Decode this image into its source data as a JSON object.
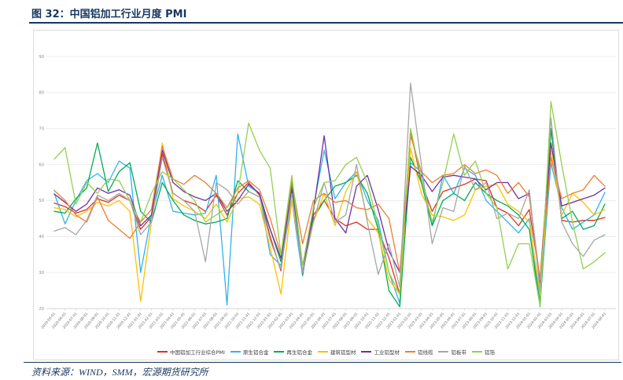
{
  "header": {
    "title": "图 32：中国铝加工行业月度 PMI"
  },
  "footer": {
    "source": "资料来源：WIND，SMM，宏源期货研究所"
  },
  "chart_data": {
    "type": "line",
    "title": "中国铝加工行业月度 PMI",
    "xlabel": "",
    "ylabel": "",
    "ylim": [
      20,
      90
    ],
    "ytick_step": 10,
    "grid": true,
    "legend_position": "bottom",
    "categories": [
      "2020-05-01",
      "2020-06-01",
      "2020-07-01",
      "2020-08-01",
      "2020-09-01",
      "2020-10-01",
      "2020-11-01",
      "2020-12-01",
      "2021-01-01",
      "2021-02-01",
      "2021-03-01",
      "2021-04-01",
      "2021-05-01",
      "2021-06-01",
      "2021-07-01",
      "2021-08-01",
      "2021-09-01",
      "2021-10-01",
      "2021-11-01",
      "2021-12-01",
      "2022-01-01",
      "2022-02-01",
      "2022-03-01",
      "2022-04-01",
      "2022-05-01",
      "2022-06-01",
      "2022-07-01",
      "2022-08-01",
      "2022-09-01",
      "2022-10-01",
      "2022-11-01",
      "2022-12-01",
      "2023-01-01",
      "2023-02-01",
      "2023-03-01",
      "2023-04-01",
      "2023-05-01",
      "2023-06-01",
      "2023-07-01",
      "2023-08-01",
      "2023-09-01",
      "2023-10-01",
      "2023-11-01",
      "2023-12-01",
      "2024-01-01",
      "2024-02-01",
      "2024-03-01",
      "2024-04-01",
      "2024-05-01",
      "2024-06-01",
      "2024-07-01",
      "2024-08-01"
    ],
    "series": [
      {
        "name": "中国铝加工行业综合PMI",
        "color": "#E0301E",
        "values": [
          49.3,
          48.3,
          46.5,
          47.5,
          50.5,
          49.5,
          51.5,
          50.0,
          42.0,
          45.5,
          63.0,
          52.0,
          50.0,
          49.0,
          47.0,
          51.5,
          46.0,
          52.0,
          55.0,
          51.5,
          40.0,
          30.5,
          54.0,
          29.5,
          46.0,
          50.0,
          45.0,
          43.0,
          44.0,
          42.0,
          42.0,
          34.0,
          24.0,
          69.5,
          55.0,
          47.0,
          52.5,
          53.5,
          54.5,
          56.0,
          55.5,
          48.0,
          46.5,
          43.0,
          47.5,
          28.0,
          70.0,
          44.5,
          44.0,
          44.5,
          44.5,
          45.3
        ]
      },
      {
        "name": "原生铝合金",
        "color": "#2FB4E9",
        "values": [
          52.0,
          43.5,
          50.0,
          55.5,
          57.5,
          55.0,
          61.0,
          59.0,
          30.0,
          46.0,
          57.0,
          47.0,
          46.5,
          46.0,
          46.5,
          57.0,
          21.0,
          68.5,
          54.0,
          52.0,
          35.0,
          32.0,
          50.0,
          29.0,
          48.0,
          64.0,
          50.5,
          55.0,
          58.0,
          50.0,
          44.5,
          30.0,
          21.5,
          60.5,
          58.0,
          43.0,
          57.0,
          52.0,
          59.0,
          57.0,
          50.0,
          47.0,
          44.0,
          41.0,
          45.0,
          22.0,
          60.5,
          48.0,
          42.0,
          44.0,
          46.0,
          52.3
        ]
      },
      {
        "name": "再生铝合金",
        "color": "#00A950",
        "values": [
          47.0,
          46.5,
          50.5,
          53.5,
          66.0,
          52.5,
          58.0,
          60.5,
          47.0,
          44.0,
          55.0,
          50.0,
          46.0,
          44.5,
          43.5,
          44.0,
          45.0,
          55.5,
          52.5,
          51.0,
          42.0,
          33.0,
          55.0,
          29.5,
          45.0,
          50.0,
          54.0,
          55.0,
          57.0,
          52.0,
          42.0,
          25.0,
          20.5,
          62.0,
          55.0,
          43.0,
          50.0,
          52.0,
          50.0,
          55.0,
          52.0,
          50.0,
          48.5,
          46.0,
          42.0,
          20.5,
          70.0,
          45.0,
          47.0,
          42.0,
          43.0,
          49.0
        ]
      },
      {
        "name": "建筑铝型材",
        "color": "#FFC000",
        "values": [
          48.0,
          47.5,
          45.5,
          47.0,
          49.5,
          48.5,
          50.0,
          47.0,
          22.0,
          44.0,
          66.0,
          50.5,
          48.5,
          47.0,
          45.0,
          49.0,
          44.0,
          50.5,
          51.0,
          49.0,
          37.0,
          24.0,
          50.0,
          32.0,
          44.0,
          52.0,
          43.0,
          52.5,
          58.0,
          45.0,
          41.0,
          28.0,
          24.0,
          64.5,
          52.0,
          46.0,
          45.5,
          44.5,
          46.0,
          53.0,
          54.0,
          54.5,
          49.0,
          47.0,
          44.0,
          24.0,
          64.0,
          46.0,
          52.0,
          49.5,
          46.0,
          47.5
        ]
      },
      {
        "name": "工业铝型材",
        "color": "#7030A0",
        "values": [
          51.8,
          49.5,
          47.0,
          49.0,
          53.5,
          52.0,
          53.0,
          51.5,
          43.0,
          46.0,
          64.0,
          55.0,
          52.5,
          51.0,
          50.0,
          52.0,
          47.0,
          50.0,
          54.5,
          52.0,
          42.0,
          34.0,
          53.0,
          30.0,
          47.0,
          68.0,
          45.0,
          41.0,
          54.0,
          57.0,
          47.5,
          36.0,
          30.0,
          59.5,
          57.0,
          52.5,
          56.5,
          57.0,
          56.5,
          56.0,
          53.0,
          55.0,
          55.0,
          50.5,
          52.0,
          27.0,
          66.0,
          48.5,
          49.5,
          50.5,
          51.5,
          53.5
        ]
      },
      {
        "name": "铝线缆",
        "color": "#ED7D31",
        "values": [
          52.8,
          50.0,
          46.0,
          44.0,
          51.0,
          44.5,
          42.0,
          39.5,
          44.0,
          47.5,
          65.0,
          56.0,
          54.5,
          57.0,
          55.0,
          52.0,
          48.0,
          53.5,
          55.5,
          53.0,
          45.0,
          35.0,
          55.5,
          38.0,
          50.0,
          52.0,
          49.5,
          50.0,
          48.0,
          47.5,
          49.0,
          45.0,
          30.0,
          68.0,
          58.0,
          55.0,
          57.0,
          57.5,
          60.0,
          57.5,
          58.5,
          57.0,
          52.0,
          55.0,
          51.0,
          28.0,
          62.0,
          50.5,
          52.0,
          53.0,
          57.0,
          54.0
        ]
      },
      {
        "name": "铝板带",
        "color": "#A6A6A6",
        "values": [
          41.5,
          42.5,
          40.5,
          44.5,
          51.5,
          50.0,
          52.0,
          50.0,
          40.5,
          44.0,
          62.0,
          52.0,
          50.0,
          47.0,
          33.0,
          55.0,
          53.0,
          49.0,
          52.5,
          51.0,
          39.0,
          31.0,
          52.0,
          30.0,
          44.0,
          55.0,
          44.0,
          46.0,
          60.0,
          44.0,
          29.5,
          38.0,
          26.0,
          82.6,
          60.0,
          38.0,
          48.0,
          47.0,
          59.6,
          53.0,
          55.0,
          45.0,
          46.5,
          45.0,
          53.0,
          25.0,
          73.0,
          44.0,
          38.0,
          34.5,
          39.0,
          40.5
        ]
      },
      {
        "name": "铝箔",
        "color": "#92D050",
        "values": [
          61.5,
          64.7,
          49.0,
          55.0,
          52.0,
          56.0,
          55.5,
          50.0,
          44.0,
          52.0,
          58.0,
          56.0,
          53.0,
          50.0,
          44.0,
          46.0,
          48.0,
          52.0,
          71.5,
          64.0,
          59.0,
          35.0,
          57.0,
          32.0,
          48.0,
          55.0,
          55.5,
          60.0,
          62.0,
          55.0,
          43.0,
          30.0,
          24.0,
          70.0,
          56.0,
          44.0,
          55.0,
          68.5,
          57.0,
          61.0,
          52.0,
          48.0,
          31.0,
          38.0,
          38.0,
          20.6,
          77.5,
          60.0,
          44.0,
          31.0,
          33.0,
          35.5
        ]
      }
    ]
  }
}
